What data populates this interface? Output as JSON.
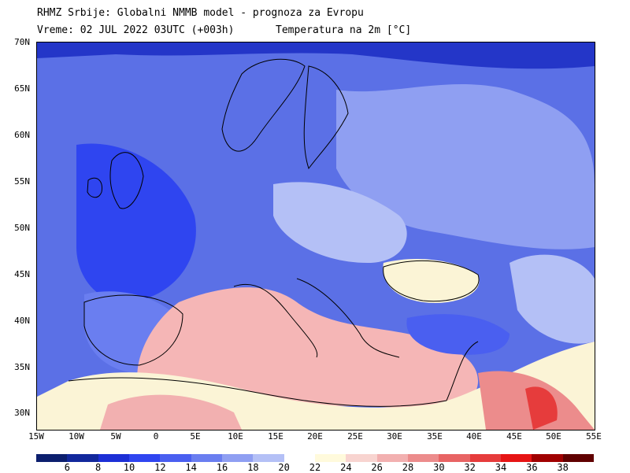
{
  "header": {
    "line1": "RHMZ Srbije: Globalni NMMB model - prognoza za Evropu",
    "line2": "Vreme: 02 JUL 2022 03UTC (+003h)",
    "line3": "Temperatura na 2m [°C]"
  },
  "axes": {
    "lat_labels": [
      "70N",
      "65N",
      "60N",
      "55N",
      "50N",
      "45N",
      "40N",
      "35N",
      "30N"
    ],
    "lon_labels": [
      "15W",
      "10W",
      "5W",
      "0",
      "5E",
      "10E",
      "15E",
      "20E",
      "25E",
      "30E",
      "35E",
      "40E",
      "45E",
      "50E",
      "55E"
    ]
  },
  "colorbar": {
    "unit": "°C",
    "labels": [
      "6",
      "8",
      "10",
      "12",
      "14",
      "16",
      "18",
      "20",
      "22",
      "24",
      "26",
      "28",
      "30",
      "32",
      "34",
      "36",
      "38"
    ],
    "colors": [
      "#0c1f6e",
      "#12289c",
      "#1c2fd6",
      "#2f45f0",
      "#4a5ff0",
      "#6a7ef0",
      "#8f9ff2",
      "#b4c0f6",
      "#ffffff",
      "#fffadc",
      "#f8d4d0",
      "#f2b0b0",
      "#ec8c8c",
      "#e86464",
      "#e63c3c",
      "#e61414",
      "#a00000",
      "#600000"
    ]
  },
  "map_layers": {
    "base_color": "#5b70e6",
    "land_hot": "#f5b6b6",
    "land_warm": "#fbf4d6",
    "sea_cold": "#3b4fe8",
    "deep_cold": "#1f2fc9",
    "coast_color": "#000000"
  }
}
